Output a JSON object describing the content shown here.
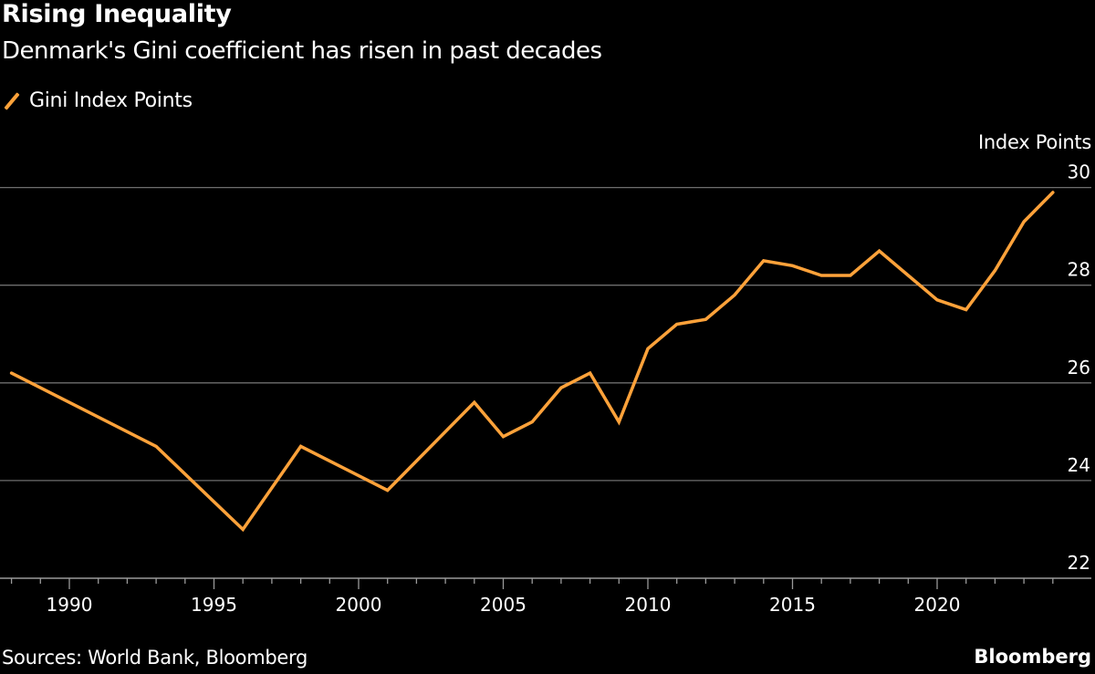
{
  "header": {
    "title": "Rising Inequality",
    "subtitle": "Denmark's Gini coefficient has risen in past decades"
  },
  "footer": {
    "source": "Sources: World Bank, Bloomberg",
    "brand": "Bloomberg"
  },
  "chart_data": {
    "type": "line",
    "title": "Rising Inequality",
    "subtitle": "Denmark's Gini coefficient has risen in past decades",
    "ylabel": "Index Points",
    "xlabel": "",
    "legend": {
      "position": "top-left",
      "entries": [
        "Gini Index Points"
      ]
    },
    "grid": true,
    "xlim": [
      1988,
      2024
    ],
    "ylim": [
      22,
      30
    ],
    "x_ticks": [
      "1990",
      "1995",
      "2000",
      "2005",
      "2010",
      "2015",
      "2020"
    ],
    "y_ticks": [
      "22",
      "24",
      "26",
      "28",
      "30"
    ],
    "y_axis_side": "right",
    "colors": {
      "line": "#ffa23a",
      "grid": "#6e6e6e",
      "background": "#000000"
    },
    "series": [
      {
        "name": "Gini Index Points",
        "x": [
          1988,
          1993,
          1996,
          1998,
          2001,
          2004,
          2005,
          2006,
          2007,
          2008,
          2009,
          2010,
          2011,
          2012,
          2013,
          2014,
          2015,
          2016,
          2017,
          2018,
          2019,
          2020,
          2021,
          2022,
          2023,
          2024
        ],
        "y": [
          26.2,
          24.7,
          23.0,
          24.7,
          23.8,
          25.6,
          24.9,
          25.2,
          25.9,
          26.2,
          25.2,
          26.7,
          27.2,
          27.3,
          27.8,
          28.5,
          28.4,
          28.2,
          28.2,
          28.7,
          28.2,
          27.7,
          27.5,
          28.3,
          29.3,
          29.9
        ]
      }
    ]
  }
}
